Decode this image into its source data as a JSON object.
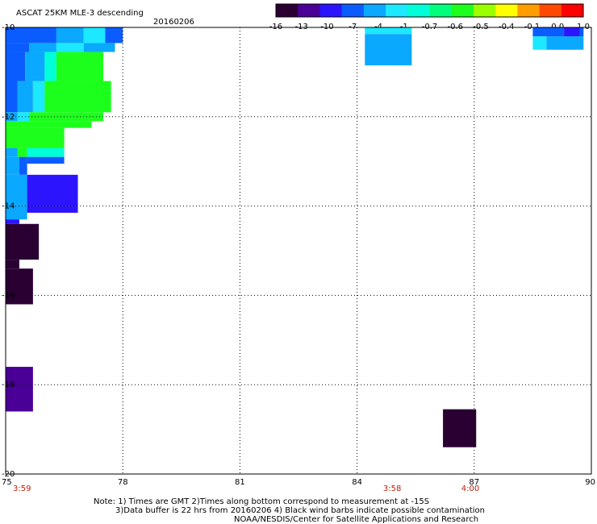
{
  "header": {
    "title": "ASCAT 25KM MLE-3 descending",
    "date": "20160206"
  },
  "colorbar": {
    "colors": [
      "#2a0033",
      "#4a0096",
      "#2c14ff",
      "#0a5cff",
      "#0aa8ff",
      "#1ce8ff",
      "#00ffd8",
      "#00ff7a",
      "#1cff1c",
      "#9cff00",
      "#ffff00",
      "#ff9c00",
      "#ff4a00",
      "#ff0000"
    ],
    "tick_labels": [
      "-16",
      "-13",
      "-10",
      "-7",
      "-4",
      "-1",
      "-0.7",
      "-0.6",
      "-0.5",
      "-0.4",
      "-0.1",
      "0.0",
      "1.0"
    ]
  },
  "chart_data": {
    "type": "heatmap",
    "xlim": [
      75,
      90
    ],
    "ylim": [
      -20,
      -10
    ],
    "x_ticks": [
      75,
      78,
      81,
      84,
      87,
      90
    ],
    "x_tick_labels": [
      "75",
      "78",
      "81",
      "84",
      "87",
      "90"
    ],
    "y_ticks": [
      -10,
      -12,
      -14,
      -16,
      -18,
      -20
    ],
    "y_tick_labels": [
      "-10",
      "-12",
      "-14",
      "-16",
      "-18",
      "-20"
    ],
    "grid": true,
    "time_labels": [
      {
        "lon": 75.0,
        "text": "3:59"
      },
      {
        "lon": 84.9,
        "text": "3:58"
      },
      {
        "lon": 86.9,
        "text": "4:00"
      }
    ],
    "cells": [
      {
        "lon0": 75.0,
        "lon1": 76.3,
        "lat0": -10.0,
        "lat1": -10.35,
        "color": "#0a5cff"
      },
      {
        "lon0": 76.3,
        "lon1": 77.0,
        "lat0": -10.0,
        "lat1": -10.35,
        "color": "#0aa8ff"
      },
      {
        "lon0": 77.0,
        "lon1": 77.55,
        "lat0": -10.0,
        "lat1": -10.35,
        "color": "#1ce8ff"
      },
      {
        "lon0": 77.55,
        "lon1": 78.0,
        "lat0": -10.0,
        "lat1": -10.35,
        "color": "#0a5cff"
      },
      {
        "lon0": 75.0,
        "lon1": 75.6,
        "lat0": -10.35,
        "lat1": -10.55,
        "color": "#0a5cff"
      },
      {
        "lon0": 75.6,
        "lon1": 76.3,
        "lat0": -10.35,
        "lat1": -10.55,
        "color": "#0aa8ff"
      },
      {
        "lon0": 76.3,
        "lon1": 77.0,
        "lat0": -10.35,
        "lat1": -10.55,
        "color": "#1ce8ff"
      },
      {
        "lon0": 77.0,
        "lon1": 77.8,
        "lat0": -10.35,
        "lat1": -10.55,
        "color": "#0aa8ff"
      },
      {
        "lon0": 75.0,
        "lon1": 75.5,
        "lat0": -10.55,
        "lat1": -11.2,
        "color": "#0a5cff"
      },
      {
        "lon0": 75.5,
        "lon1": 76.0,
        "lat0": -10.55,
        "lat1": -11.2,
        "color": "#0aa8ff"
      },
      {
        "lon0": 76.0,
        "lon1": 76.3,
        "lat0": -10.55,
        "lat1": -11.2,
        "color": "#00ffd8"
      },
      {
        "lon0": 76.3,
        "lon1": 77.5,
        "lat0": -10.55,
        "lat1": -11.2,
        "color": "#1cff1c"
      },
      {
        "lon0": 75.0,
        "lon1": 75.3,
        "lat0": -11.2,
        "lat1": -11.9,
        "color": "#0a5cff"
      },
      {
        "lon0": 75.3,
        "lon1": 75.7,
        "lat0": -11.2,
        "lat1": -11.9,
        "color": "#0aa8ff"
      },
      {
        "lon0": 75.7,
        "lon1": 76.0,
        "lat0": -11.2,
        "lat1": -11.9,
        "color": "#1ce8ff"
      },
      {
        "lon0": 76.0,
        "lon1": 77.7,
        "lat0": -11.2,
        "lat1": -11.9,
        "color": "#1cff1c"
      },
      {
        "lon0": 75.0,
        "lon1": 75.3,
        "lat0": -11.9,
        "lat1": -12.1,
        "color": "#0aa8ff"
      },
      {
        "lon0": 75.3,
        "lon1": 75.6,
        "lat0": -11.9,
        "lat1": -12.1,
        "color": "#1ce8ff"
      },
      {
        "lon0": 75.6,
        "lon1": 77.5,
        "lat0": -11.9,
        "lat1": -12.1,
        "color": "#1cff1c"
      },
      {
        "lon0": 75.0,
        "lon1": 77.2,
        "lat0": -12.1,
        "lat1": -12.25,
        "color": "#1cff1c"
      },
      {
        "lon0": 75.0,
        "lon1": 76.5,
        "lat0": -12.25,
        "lat1": -12.7,
        "color": "#1cff1c"
      },
      {
        "lon0": 75.0,
        "lon1": 75.3,
        "lat0": -12.7,
        "lat1": -12.9,
        "color": "#0aa8ff"
      },
      {
        "lon0": 75.3,
        "lon1": 75.55,
        "lat0": -12.7,
        "lat1": -12.9,
        "color": "#1cff1c"
      },
      {
        "lon0": 75.55,
        "lon1": 76.5,
        "lat0": -12.7,
        "lat1": -12.9,
        "color": "#00ffd8"
      },
      {
        "lon0": 75.0,
        "lon1": 75.35,
        "lat0": -12.9,
        "lat1": -13.3,
        "color": "#0aa8ff"
      },
      {
        "lon0": 75.35,
        "lon1": 75.55,
        "lat0": -12.9,
        "lat1": -13.3,
        "color": "#0a5cff"
      },
      {
        "lon0": 75.55,
        "lon1": 76.5,
        "lat0": -12.9,
        "lat1": -13.05,
        "color": "#0a5cff"
      },
      {
        "lon0": 75.0,
        "lon1": 75.55,
        "lat0": -13.3,
        "lat1": -14.0,
        "color": "#0aa8ff"
      },
      {
        "lon0": 75.55,
        "lon1": 76.85,
        "lat0": -13.3,
        "lat1": -14.0,
        "color": "#2c14ff"
      },
      {
        "lon0": 75.0,
        "lon1": 75.55,
        "lat0": -14.0,
        "lat1": -14.3,
        "color": "#0aa8ff"
      },
      {
        "lon0": 75.55,
        "lon1": 76.85,
        "lat0": -14.0,
        "lat1": -14.15,
        "color": "#2c14ff"
      },
      {
        "lon0": 75.0,
        "lon1": 75.35,
        "lat0": -14.3,
        "lat1": -14.4,
        "color": "#2c14ff"
      },
      {
        "lon0": 75.0,
        "lon1": 75.85,
        "lat0": -14.4,
        "lat1": -15.2,
        "color": "#2a0033"
      },
      {
        "lon0": 75.0,
        "lon1": 75.35,
        "lat0": -15.2,
        "lat1": -15.4,
        "color": "#2a0033"
      },
      {
        "lon0": 75.0,
        "lon1": 75.7,
        "lat0": -15.4,
        "lat1": -16.2,
        "color": "#2a0033"
      },
      {
        "lon0": 75.0,
        "lon1": 75.7,
        "lat0": -17.6,
        "lat1": -18.6,
        "color": "#4a0096"
      },
      {
        "lon0": 84.2,
        "lon1": 85.4,
        "lat0": -10.0,
        "lat1": -10.15,
        "color": "#1ce8ff"
      },
      {
        "lon0": 84.2,
        "lon1": 85.4,
        "lat0": -10.15,
        "lat1": -10.85,
        "color": "#0aa8ff"
      },
      {
        "lon0": 88.5,
        "lon1": 89.3,
        "lat0": -10.0,
        "lat1": -10.2,
        "color": "#0a5cff"
      },
      {
        "lon0": 89.3,
        "lon1": 89.7,
        "lat0": -10.0,
        "lat1": -10.2,
        "color": "#2c14ff"
      },
      {
        "lon0": 89.7,
        "lon1": 89.8,
        "lat0": -10.0,
        "lat1": -10.2,
        "color": "#0a5cff"
      },
      {
        "lon0": 88.5,
        "lon1": 88.85,
        "lat0": -10.2,
        "lat1": -10.5,
        "color": "#1ce8ff"
      },
      {
        "lon0": 88.85,
        "lon1": 89.8,
        "lat0": -10.2,
        "lat1": -10.5,
        "color": "#0aa8ff"
      },
      {
        "lon0": 86.2,
        "lon1": 87.05,
        "lat0": -18.55,
        "lat1": -19.4,
        "color": "#2a0033"
      }
    ]
  },
  "footer": {
    "note_line1": "Note: 1) Times are GMT 2)Times along bottom correspond to measurement at -15S",
    "note_line2": "3)Data buffer is 22 hrs from 20160206 4) Black wind barbs indicate possible contamination",
    "credit": "NOAA/NESDIS/Center for Satellite Applications and Research"
  }
}
